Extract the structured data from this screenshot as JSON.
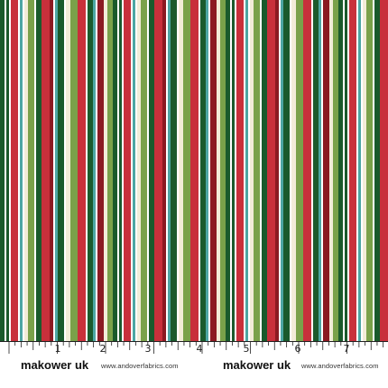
{
  "stripe_sequence": [
    "#1a5a2c",
    "#ffffff",
    "#1a5a2c",
    "#ffffff",
    "#c8303b",
    "#ffffff",
    "#4da6a3",
    "#ffffff",
    "#f2ecd8",
    "#7aa14a",
    "#ffffff",
    "#1a5a2c",
    "#c8303b",
    "#8b1a22",
    "#ffffff",
    "#4da6a3",
    "#1a5a2c",
    "#ffffff",
    "#f2ecd8",
    "#7aa14a",
    "#c8303b",
    "#ffffff",
    "#1a5a2c",
    "#4da6a3",
    "#ffffff",
    "#8b1a22",
    "#f2ecd8",
    "#7aa14a"
  ],
  "ruler": {
    "labels": [
      "1",
      "2",
      "3",
      "4",
      "5",
      "6",
      "7"
    ],
    "brand_1": "makower uk",
    "site_1": "www.andoverfabrics.com",
    "brand_2": "makower uk",
    "site_2": "www.andoverfabrics.com"
  },
  "colors": {
    "dark_green": "#1a5a2c",
    "red": "#c8303b",
    "dark_red": "#8b1a22",
    "teal": "#4da6a3",
    "sage": "#7aa14a",
    "cream": "#f2ecd8",
    "white": "#ffffff"
  }
}
